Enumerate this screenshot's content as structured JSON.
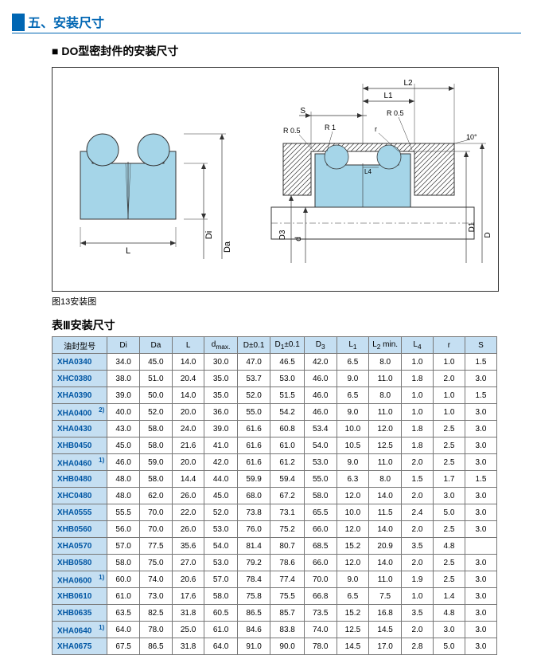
{
  "header": {
    "title": "五、安装尺寸"
  },
  "subtitle": "DO型密封件的安装尺寸",
  "diagram_caption": "图13安装图",
  "table_title": "表Ⅲ安装尺寸",
  "diagram": {
    "left_labels": {
      "L": "L",
      "Di": "Di",
      "Da": "Da"
    },
    "right_labels": {
      "L2": "L2",
      "L1": "L1",
      "S": "S",
      "R1": "R 1",
      "R05a": "R 0.5",
      "R05b": "R 0.5",
      "r": "r",
      "ten": "10°",
      "L4": "L4",
      "D3": "D3",
      "d": "d",
      "D1": "D1",
      "D": "D"
    },
    "seal_color": "#a5d5e8",
    "hatch_color": "#333",
    "line_color": "#333"
  },
  "table": {
    "header_bg": "#c5dff2",
    "columns": [
      "油封型号",
      "Di",
      "Da",
      "L",
      "dmax.",
      "D±0.1",
      "D₁±0.1",
      "D₃",
      "L1",
      "L2 min.",
      "L4",
      "r",
      "S"
    ],
    "colHeadHtmlIdx": {
      "0": "油封型号",
      "4": "d<sub>max.</sub>",
      "6": "D<sub>1</sub>±0.1",
      "7": "D<sub>3</sub>",
      "8": "L<sub>1</sub>",
      "9": "L<sub>2</sub> min.",
      "10": "L<sub>4</sub>"
    },
    "rows": [
      {
        "model": "XHA0340",
        "sup": "",
        "v": [
          "34.0",
          "45.0",
          "14.0",
          "30.0",
          "47.0",
          "46.5",
          "42.0",
          "6.5",
          "8.0",
          "1.0",
          "1.0",
          "1.5"
        ]
      },
      {
        "model": "XHC0380",
        "sup": "",
        "v": [
          "38.0",
          "51.0",
          "20.4",
          "35.0",
          "53.7",
          "53.0",
          "46.0",
          "9.0",
          "11.0",
          "1.8",
          "2.0",
          "3.0"
        ]
      },
      {
        "model": "XHA0390",
        "sup": "",
        "v": [
          "39.0",
          "50.0",
          "14.0",
          "35.0",
          "52.0",
          "51.5",
          "46.0",
          "6.5",
          "8.0",
          "1.0",
          "1.0",
          "1.5"
        ]
      },
      {
        "model": "XHA0400",
        "sup": "2)",
        "v": [
          "40.0",
          "52.0",
          "20.0",
          "36.0",
          "55.0",
          "54.2",
          "46.0",
          "9.0",
          "11.0",
          "1.0",
          "1.0",
          "3.0"
        ]
      },
      {
        "model": "XHA0430",
        "sup": "",
        "v": [
          "43.0",
          "58.0",
          "24.0",
          "39.0",
          "61.6",
          "60.8",
          "53.4",
          "10.0",
          "12.0",
          "1.8",
          "2.5",
          "3.0"
        ]
      },
      {
        "model": "XHB0450",
        "sup": "",
        "v": [
          "45.0",
          "58.0",
          "21.6",
          "41.0",
          "61.6",
          "61.0",
          "54.0",
          "10.5",
          "12.5",
          "1.8",
          "2.5",
          "3.0"
        ]
      },
      {
        "model": "XHA0460",
        "sup": "1)",
        "v": [
          "46.0",
          "59.0",
          "20.0",
          "42.0",
          "61.6",
          "61.2",
          "53.0",
          "9.0",
          "11.0",
          "2.0",
          "2.5",
          "3.0"
        ]
      },
      {
        "model": "XHB0480",
        "sup": "",
        "v": [
          "48.0",
          "58.0",
          "14.4",
          "44.0",
          "59.9",
          "59.4",
          "55.0",
          "6.3",
          "8.0",
          "1.5",
          "1.7",
          "1.5"
        ]
      },
      {
        "model": "XHC0480",
        "sup": "",
        "v": [
          "48.0",
          "62.0",
          "26.0",
          "45.0",
          "68.0",
          "67.2",
          "58.0",
          "12.0",
          "14.0",
          "2.0",
          "3.0",
          "3.0"
        ]
      },
      {
        "model": "XHA0555",
        "sup": "",
        "v": [
          "55.5",
          "70.0",
          "22.0",
          "52.0",
          "73.8",
          "73.1",
          "65.5",
          "10.0",
          "11.5",
          "2.4",
          "5.0",
          "3.0"
        ]
      },
      {
        "model": "XHB0560",
        "sup": "",
        "v": [
          "56.0",
          "70.0",
          "26.0",
          "53.0",
          "76.0",
          "75.2",
          "66.0",
          "12.0",
          "14.0",
          "2.0",
          "2.5",
          "3.0"
        ]
      },
      {
        "model": "XHA0570",
        "sup": "",
        "v": [
          "57.0",
          "77.5",
          "35.6",
          "54.0",
          "81.4",
          "80.7",
          "68.5",
          "15.2",
          "20.9",
          "3.5",
          "4.8",
          ""
        ]
      },
      {
        "model": "XHB0580",
        "sup": "",
        "v": [
          "58.0",
          "75.0",
          "27.0",
          "53.0",
          "79.2",
          "78.6",
          "66.0",
          "12.0",
          "14.0",
          "2.0",
          "2.5",
          "3.0"
        ]
      },
      {
        "model": "XHA0600",
        "sup": "1)",
        "v": [
          "60.0",
          "74.0",
          "20.6",
          "57.0",
          "78.4",
          "77.4",
          "70.0",
          "9.0",
          "11.0",
          "1.9",
          "2.5",
          "3.0"
        ]
      },
      {
        "model": "XHB0610",
        "sup": "",
        "v": [
          "61.0",
          "73.0",
          "17.6",
          "58.0",
          "75.8",
          "75.5",
          "66.8",
          "6.5",
          "7.5",
          "1.0",
          "1.4",
          "3.0"
        ]
      },
      {
        "model": "XHB0635",
        "sup": "",
        "v": [
          "63.5",
          "82.5",
          "31.8",
          "60.5",
          "86.5",
          "85.7",
          "73.5",
          "15.2",
          "16.8",
          "3.5",
          "4.8",
          "3.0"
        ]
      },
      {
        "model": "XHA0640",
        "sup": "1)",
        "v": [
          "64.0",
          "78.0",
          "25.0",
          "61.0",
          "84.6",
          "83.8",
          "74.0",
          "12.5",
          "14.5",
          "2.0",
          "3.0",
          "3.0"
        ]
      },
      {
        "model": "XHA0675",
        "sup": "",
        "v": [
          "67.5",
          "86.5",
          "31.8",
          "64.0",
          "91.0",
          "90.0",
          "78.0",
          "14.5",
          "17.0",
          "2.8",
          "5.0",
          "3.0"
        ]
      }
    ]
  }
}
